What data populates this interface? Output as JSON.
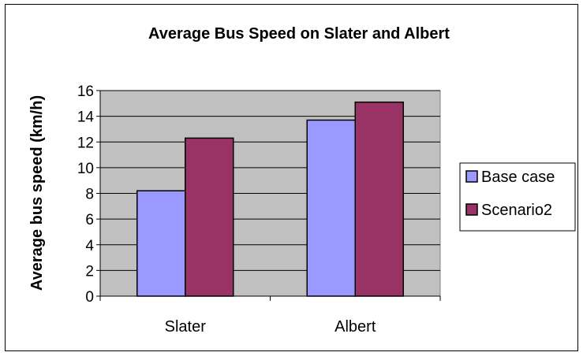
{
  "chart_data": {
    "type": "bar",
    "title": "Average Bus Speed on Slater and Albert",
    "xlabel": "",
    "ylabel": "Average bus speed (km/h)",
    "categories": [
      "Slater",
      "Albert"
    ],
    "series": [
      {
        "name": "Base case",
        "values": [
          8.2,
          13.7
        ],
        "color": "#9999ff"
      },
      {
        "name": "Scenario2",
        "values": [
          12.3,
          15.1
        ],
        "color": "#993366"
      }
    ],
    "ylim": [
      0,
      16
    ],
    "yticks": [
      0,
      2,
      4,
      6,
      8,
      10,
      12,
      14,
      16
    ],
    "plot_background": "#c0c0c0",
    "grid": true,
    "legend_position": "right"
  }
}
